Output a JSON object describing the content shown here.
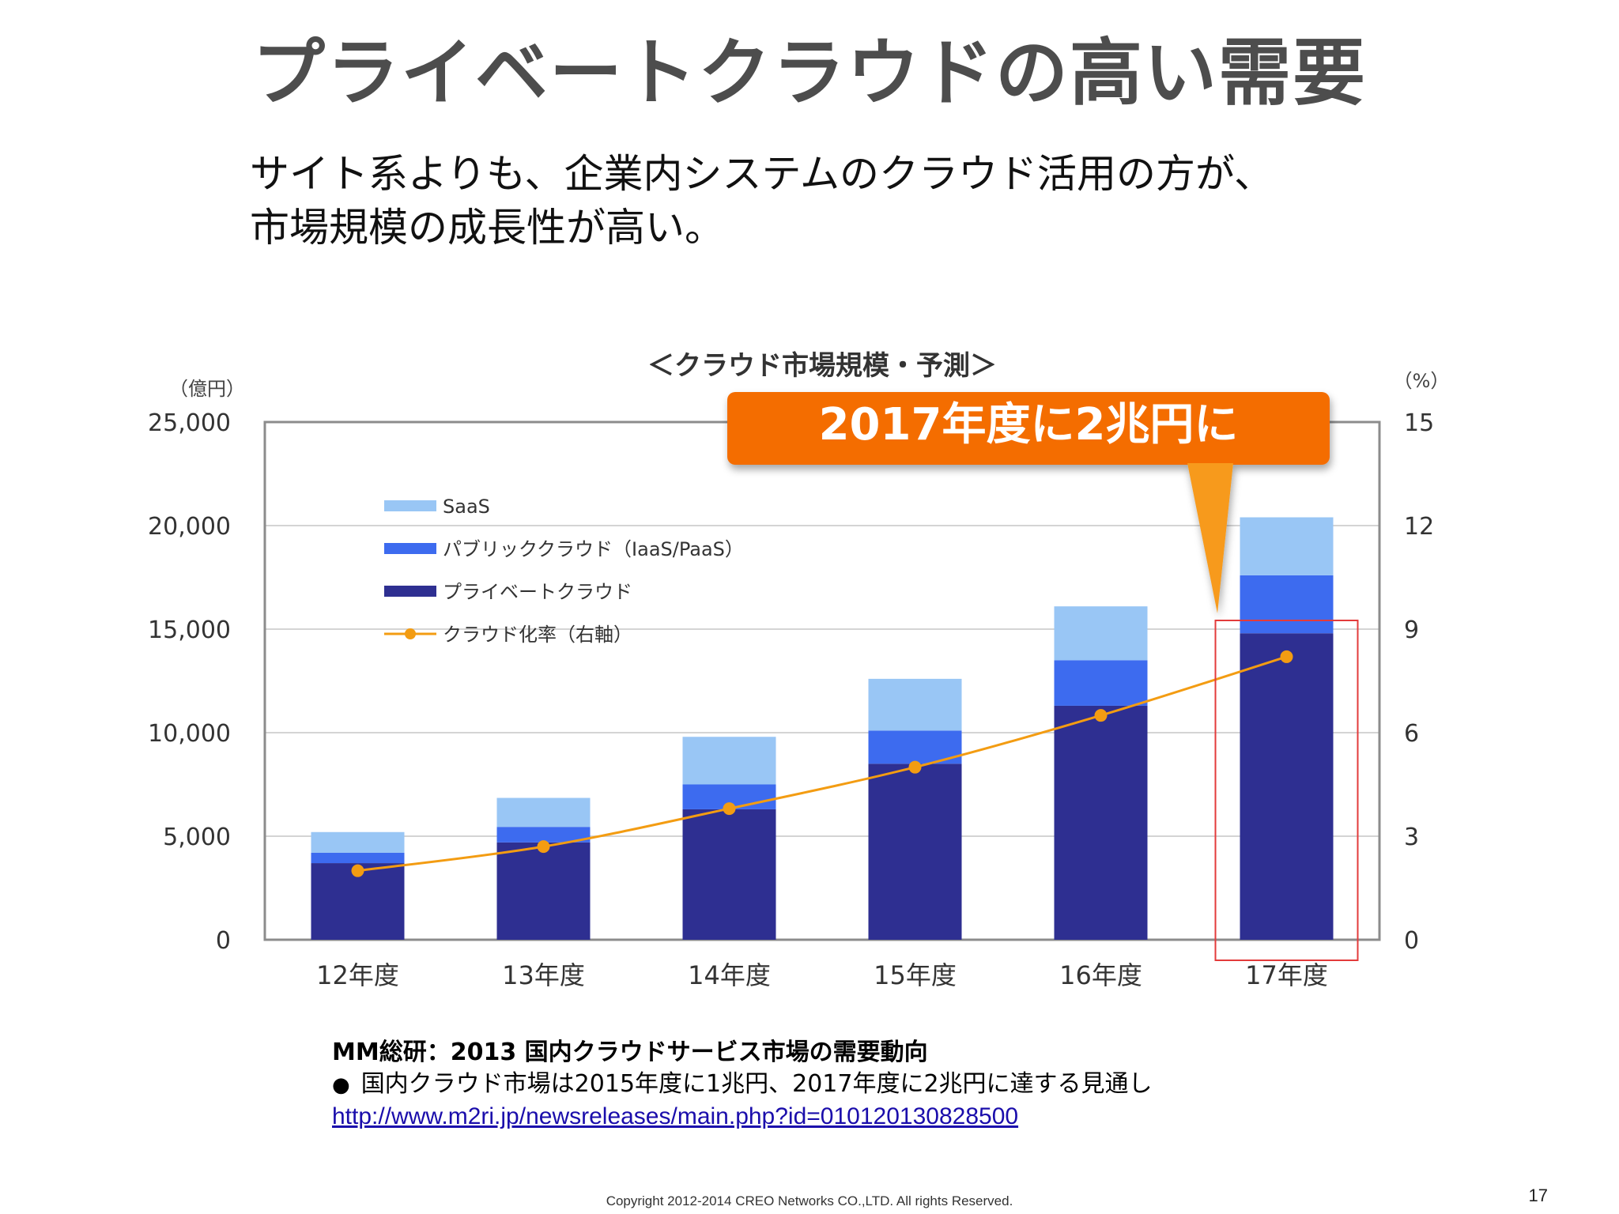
{
  "slide": {
    "title": "プライベートクラウドの高い需要",
    "lead_lines": [
      "サイト系よりも、企業内システムのクラウド活用の方が、",
      "市場規模の成長性が高い。"
    ],
    "page_number": "17",
    "copyright": "Copyright 2012-2014 CREO Networks CO.,LTD. All rights Reserved."
  },
  "source": {
    "title": "MM総研：2013 国内クラウドサービス市場の需要動向",
    "note": "国内クラウド市場は2015年度に1兆円、2017年度に2兆円に達する見通し",
    "link": "http://www.m2ri.jp/newsreleases/main.php?id=010120130828500"
  },
  "colors": {
    "saas": "#99c6f5",
    "public": "#3d6bef",
    "private": "#2e2f91",
    "rate": "#f39c12",
    "callout": "#f46d00",
    "highlight": "#e33b3b"
  },
  "chart_data": {
    "type": "bar",
    "stacked": true,
    "title": "＜クラウド市場規模・予測＞",
    "y_unit_label": "（億円）",
    "y2_unit_label": "（%）",
    "categories": [
      "12年度",
      "13年度",
      "14年度",
      "15年度",
      "16年度",
      "17年度"
    ],
    "series": [
      {
        "name": "プライベートクラウド",
        "values": [
          3700,
          4700,
          6300,
          8500,
          11300,
          14800
        ]
      },
      {
        "name": "パブリッククラウド（IaaS/PaaS）",
        "values": [
          500,
          750,
          1200,
          1600,
          2200,
          2800
        ]
      },
      {
        "name": "SaaS",
        "values": [
          1000,
          1400,
          2300,
          2500,
          2600,
          2800
        ]
      }
    ],
    "line_series": {
      "name": "クラウド化率（右軸）",
      "axis": "right",
      "values": [
        2.0,
        2.7,
        3.8,
        5.0,
        6.5,
        8.2
      ]
    },
    "ylim": [
      0,
      25000
    ],
    "y_ticks": [
      "0",
      "5,000",
      "10,000",
      "15,000",
      "20,000",
      "25,000"
    ],
    "y2lim": [
      0,
      15
    ],
    "y2_ticks": [
      "0",
      "3",
      "6",
      "9",
      "12",
      "15"
    ],
    "legend_position": "top-left",
    "grid": true,
    "callout": "2017年度に2兆円に",
    "highlighted_category": "17年度"
  }
}
